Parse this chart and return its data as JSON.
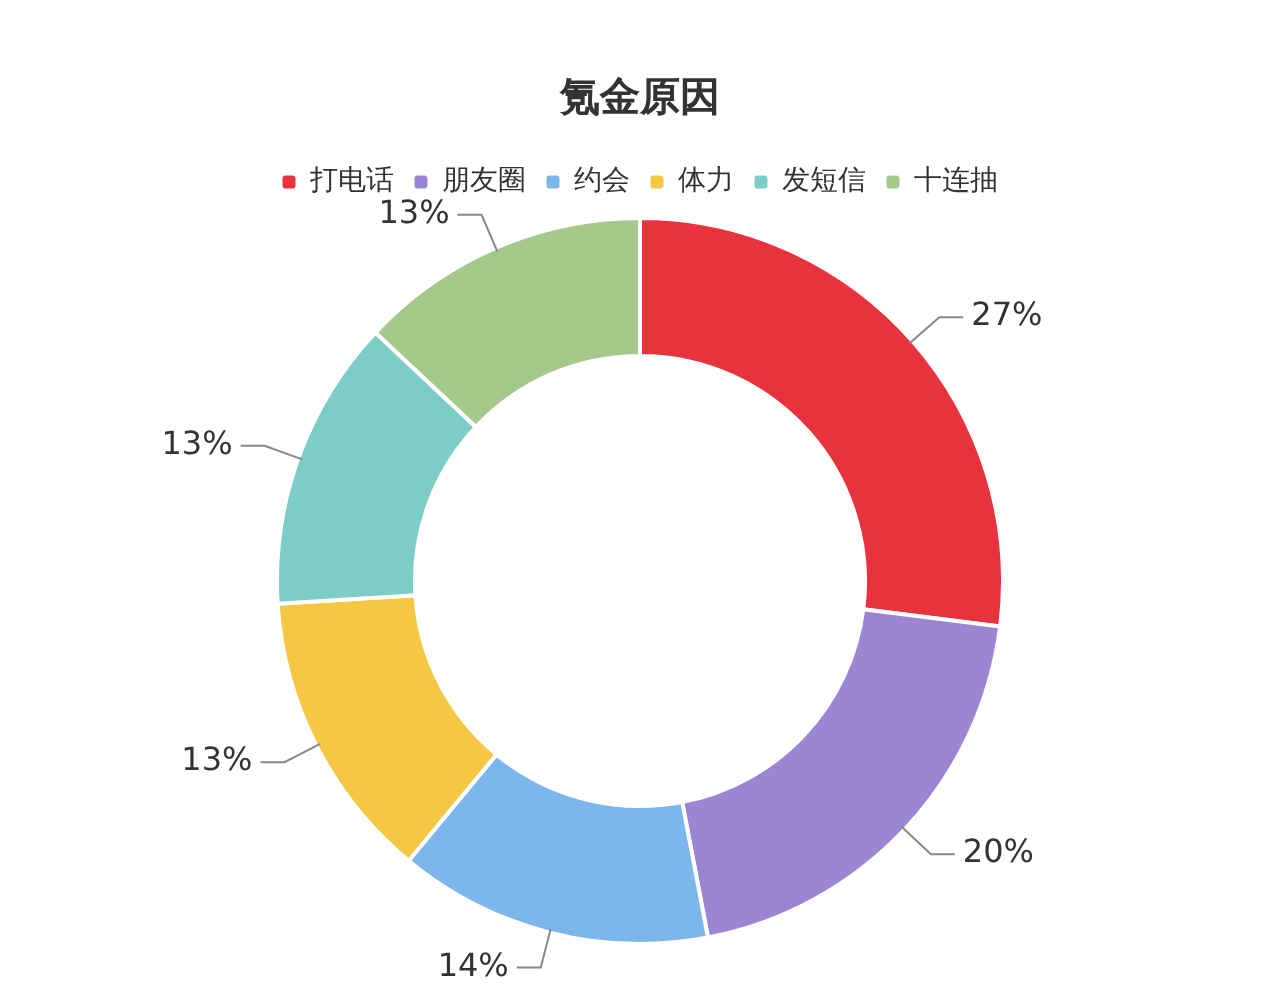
{
  "chart_data": {
    "type": "donut",
    "title": "氪金原因",
    "categories": [
      "打电话",
      "朋友圈",
      "约会",
      "体力",
      "发短信",
      "十连抽"
    ],
    "values": [
      27,
      20,
      14,
      13,
      13,
      13
    ],
    "colors": [
      "#e8333f",
      "#9c86d4",
      "#7cb6ec",
      "#f4c842",
      "#7ccdc5",
      "#a5c98b"
    ],
    "value_labels": [
      "27%",
      "20%",
      "14%",
      "13%",
      "13%",
      "13%"
    ],
    "legend": "top"
  }
}
